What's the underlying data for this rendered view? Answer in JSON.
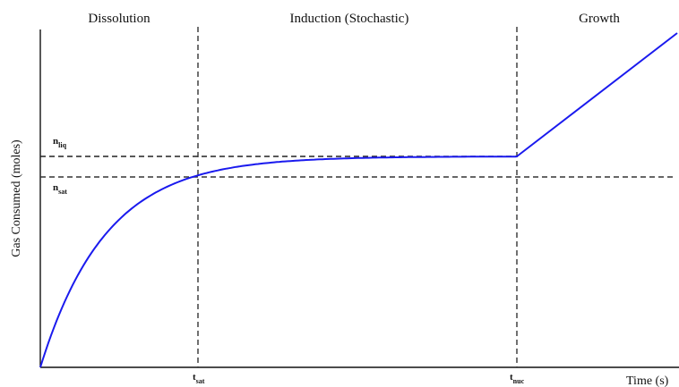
{
  "regions": {
    "dissolution": "Dissolution",
    "induction": "Induction (Stochastic)",
    "growth": "Growth"
  },
  "axes": {
    "xlabel": "Time (s)",
    "ylabel": "Gas Consumed (moles)"
  },
  "markers": {
    "n_liq": {
      "main": "n",
      "sub": "liq"
    },
    "n_sat": {
      "main": "n",
      "sub": "sat"
    },
    "t_sat": {
      "main": "t",
      "sub": "sat"
    },
    "t_nuc": {
      "main": "t",
      "sub": "nuc"
    }
  },
  "colors": {
    "curve": "#1a1aee",
    "axes": "#111111",
    "dashed": "#333333"
  }
}
